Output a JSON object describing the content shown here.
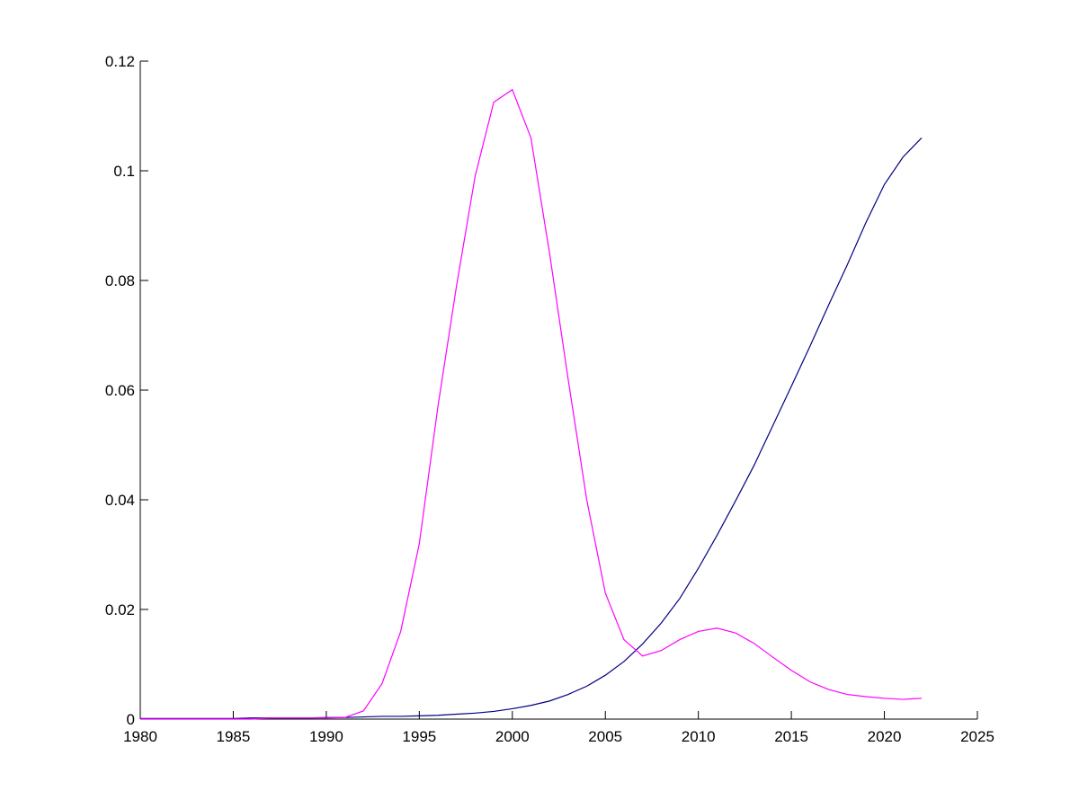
{
  "chart_data": {
    "type": "line",
    "x": [
      1980,
      1981,
      1982,
      1983,
      1984,
      1985,
      1986,
      1987,
      1988,
      1989,
      1990,
      1991,
      1992,
      1993,
      1994,
      1995,
      1996,
      1997,
      1998,
      1999,
      2000,
      2001,
      2002,
      2003,
      2004,
      2005,
      2006,
      2007,
      2008,
      2009,
      2010,
      2011,
      2012,
      2013,
      2014,
      2015,
      2016,
      2017,
      2018,
      2019,
      2020,
      2021,
      2022
    ],
    "series": [
      {
        "color": "#000080",
        "values": [
          0.0001,
          0.0001,
          0.0001,
          0.0001,
          0.0001,
          0.0001,
          0.0002,
          0.0002,
          0.0002,
          0.0002,
          0.0003,
          0.0003,
          0.0004,
          0.0005,
          0.0005,
          0.0006,
          0.0007,
          0.0009,
          0.0011,
          0.0014,
          0.0019,
          0.0025,
          0.0033,
          0.0045,
          0.006,
          0.008,
          0.0105,
          0.0137,
          0.0175,
          0.022,
          0.0275,
          0.0335,
          0.0398,
          0.0463,
          0.0535,
          0.0607,
          0.068,
          0.0755,
          0.0828,
          0.0905,
          0.0975,
          0.1025,
          0.106
        ]
      },
      {
        "color": "#ff00ff",
        "values": [
          0,
          0,
          0,
          0,
          0,
          0,
          0,
          0.0002,
          0.0002,
          0.0002,
          0.0002,
          0.0003,
          0.0015,
          0.0065,
          0.016,
          0.032,
          0.057,
          0.079,
          0.099,
          0.1125,
          0.1148,
          0.106,
          0.085,
          0.062,
          0.04,
          0.023,
          0.0145,
          0.0115,
          0.0125,
          0.0145,
          0.016,
          0.0166,
          0.0157,
          0.0138,
          0.0113,
          0.0089,
          0.0068,
          0.0054,
          0.0045,
          0.0041,
          0.0038,
          0.0036,
          0.0038
        ]
      }
    ],
    "xlim": [
      1980,
      2025
    ],
    "xticks": [
      1980,
      1985,
      1990,
      1995,
      2000,
      2005,
      2010,
      2015,
      2020,
      2025
    ],
    "ylim": [
      0,
      0.12
    ],
    "yticks": [
      0,
      0.02,
      0.04,
      0.06,
      0.08,
      0.1,
      0.12
    ],
    "grid": false
  }
}
